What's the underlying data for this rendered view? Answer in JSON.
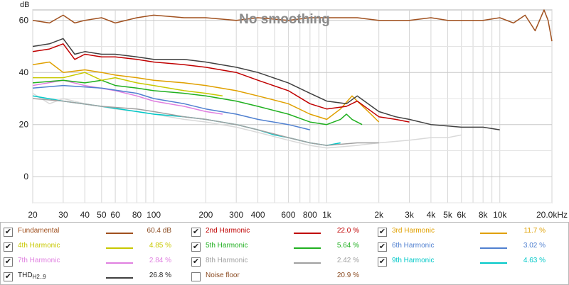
{
  "chart_data": {
    "type": "line",
    "title": "No smoothing",
    "ylabel": "dB",
    "x_scale": "log",
    "xlim": [
      20,
      20000
    ],
    "ylim": [
      -10,
      64
    ],
    "x_ticks": [
      {
        "v": 20,
        "label": "20"
      },
      {
        "v": 30,
        "label": "30"
      },
      {
        "v": 40,
        "label": "40"
      },
      {
        "v": 50,
        "label": "50"
      },
      {
        "v": 60,
        "label": "60"
      },
      {
        "v": 80,
        "label": "80"
      },
      {
        "v": 100,
        "label": "100"
      },
      {
        "v": 200,
        "label": "200"
      },
      {
        "v": 300,
        "label": "300"
      },
      {
        "v": 400,
        "label": "400"
      },
      {
        "v": 600,
        "label": "600"
      },
      {
        "v": 800,
        "label": "800"
      },
      {
        "v": 1000,
        "label": "1k"
      },
      {
        "v": 2000,
        "label": "2k"
      },
      {
        "v": 3000,
        "label": "3k"
      },
      {
        "v": 4000,
        "label": "4k"
      },
      {
        "v": 5000,
        "label": "5k"
      },
      {
        "v": 6000,
        "label": "6k"
      },
      {
        "v": 8000,
        "label": "8k"
      },
      {
        "v": 10000,
        "label": "10k"
      },
      {
        "v": 20000,
        "label": "20.0kHz"
      }
    ],
    "y_ticks": [
      {
        "v": 0,
        "label": "0"
      },
      {
        "v": 20,
        "label": "20"
      },
      {
        "v": 40,
        "label": "40"
      },
      {
        "v": 60,
        "label": "60"
      }
    ],
    "series": [
      {
        "name": "Noise floor",
        "color": "#d9d9d9",
        "visible": true,
        "points": [
          [
            20,
            32
          ],
          [
            25,
            28
          ],
          [
            30,
            30
          ],
          [
            40,
            28
          ],
          [
            60,
            26
          ],
          [
            80,
            25
          ],
          [
            100,
            24
          ],
          [
            150,
            22
          ],
          [
            200,
            21
          ],
          [
            300,
            19
          ],
          [
            400,
            17
          ],
          [
            600,
            14
          ],
          [
            800,
            12
          ],
          [
            1000,
            11
          ],
          [
            1500,
            12
          ],
          [
            2000,
            13
          ],
          [
            3000,
            14
          ],
          [
            4000,
            15
          ],
          [
            5000,
            15
          ],
          [
            6000,
            16
          ]
        ]
      },
      {
        "name": "9th Harmonic",
        "color": "#00c8c8",
        "points": [
          [
            20,
            31
          ],
          [
            30,
            29
          ],
          [
            50,
            27
          ],
          [
            80,
            25
          ],
          [
            100,
            24
          ],
          [
            150,
            23
          ],
          [
            200,
            22
          ],
          [
            300,
            20
          ],
          [
            400,
            18
          ],
          [
            500,
            16
          ],
          [
            600,
            15
          ],
          [
            800,
            13
          ],
          [
            1000,
            12
          ],
          [
            1200,
            13
          ]
        ]
      },
      {
        "name": "8th Harmonic",
        "color": "#a0a0a0",
        "points": [
          [
            20,
            30
          ],
          [
            30,
            29
          ],
          [
            50,
            27
          ],
          [
            80,
            26
          ],
          [
            100,
            25
          ],
          [
            150,
            23
          ],
          [
            200,
            22
          ],
          [
            300,
            20
          ],
          [
            400,
            18
          ],
          [
            600,
            15
          ],
          [
            800,
            13
          ],
          [
            1000,
            12
          ],
          [
            1500,
            13
          ],
          [
            2000,
            13
          ]
        ]
      },
      {
        "name": "7th Harmonic",
        "color": "#e080e0",
        "points": [
          [
            20,
            35
          ],
          [
            30,
            37
          ],
          [
            40,
            35
          ],
          [
            60,
            33
          ],
          [
            80,
            31
          ],
          [
            100,
            29
          ],
          [
            150,
            27
          ],
          [
            200,
            25
          ],
          [
            250,
            24
          ]
        ]
      },
      {
        "name": "6th Harmonic",
        "color": "#5080d0",
        "points": [
          [
            20,
            34
          ],
          [
            30,
            35
          ],
          [
            50,
            34
          ],
          [
            80,
            32
          ],
          [
            100,
            30
          ],
          [
            150,
            28
          ],
          [
            200,
            26
          ],
          [
            300,
            24
          ],
          [
            400,
            22
          ],
          [
            600,
            20
          ],
          [
            800,
            18
          ]
        ]
      },
      {
        "name": "5th Harmonic",
        "color": "#20b020",
        "points": [
          [
            20,
            36
          ],
          [
            30,
            37
          ],
          [
            40,
            36
          ],
          [
            50,
            37
          ],
          [
            60,
            35
          ],
          [
            80,
            34
          ],
          [
            100,
            33
          ],
          [
            150,
            32
          ],
          [
            200,
            31
          ],
          [
            300,
            29
          ],
          [
            400,
            27
          ],
          [
            600,
            24
          ],
          [
            800,
            21
          ],
          [
            1000,
            20
          ],
          [
            1200,
            22
          ],
          [
            1300,
            24
          ],
          [
            1400,
            22
          ],
          [
            1600,
            20
          ]
        ]
      },
      {
        "name": "4th Harmonic",
        "color": "#c8c800",
        "points": [
          [
            20,
            38
          ],
          [
            30,
            38
          ],
          [
            40,
            40
          ],
          [
            50,
            37
          ],
          [
            60,
            38
          ],
          [
            80,
            36
          ],
          [
            100,
            35
          ],
          [
            150,
            33
          ],
          [
            200,
            32
          ],
          [
            250,
            31
          ]
        ]
      },
      {
        "name": "3rd Harmonic",
        "color": "#e0a000",
        "points": [
          [
            20,
            43
          ],
          [
            25,
            44
          ],
          [
            30,
            40
          ],
          [
            40,
            41
          ],
          [
            50,
            40
          ],
          [
            60,
            39
          ],
          [
            80,
            38
          ],
          [
            100,
            37
          ],
          [
            150,
            36
          ],
          [
            200,
            35
          ],
          [
            300,
            33
          ],
          [
            400,
            31
          ],
          [
            600,
            28
          ],
          [
            800,
            24
          ],
          [
            1000,
            22
          ],
          [
            1200,
            26
          ],
          [
            1400,
            31
          ],
          [
            1500,
            29
          ],
          [
            1800,
            24
          ],
          [
            2000,
            21
          ]
        ]
      },
      {
        "name": "2nd Harmonic",
        "color": "#c00000",
        "points": [
          [
            20,
            48
          ],
          [
            25,
            49
          ],
          [
            30,
            51
          ],
          [
            35,
            45
          ],
          [
            40,
            47
          ],
          [
            50,
            46
          ],
          [
            60,
            46
          ],
          [
            80,
            45
          ],
          [
            100,
            44
          ],
          [
            150,
            43
          ],
          [
            200,
            42
          ],
          [
            300,
            40
          ],
          [
            400,
            37
          ],
          [
            600,
            33
          ],
          [
            800,
            28
          ],
          [
            1000,
            26
          ],
          [
            1300,
            27
          ],
          [
            1500,
            29
          ],
          [
            2000,
            23
          ],
          [
            2500,
            22
          ],
          [
            3000,
            21
          ]
        ]
      },
      {
        "name": "THD",
        "color": "#404040",
        "points": [
          [
            20,
            50
          ],
          [
            25,
            51
          ],
          [
            30,
            53
          ],
          [
            35,
            47
          ],
          [
            40,
            48
          ],
          [
            50,
            47
          ],
          [
            60,
            47
          ],
          [
            80,
            46
          ],
          [
            100,
            45
          ],
          [
            150,
            45
          ],
          [
            200,
            44
          ],
          [
            300,
            42
          ],
          [
            400,
            40
          ],
          [
            600,
            36
          ],
          [
            800,
            32
          ],
          [
            1000,
            29
          ],
          [
            1300,
            28
          ],
          [
            1500,
            31
          ],
          [
            2000,
            25
          ],
          [
            2500,
            23
          ],
          [
            3000,
            22
          ],
          [
            4000,
            20
          ],
          [
            6000,
            19
          ],
          [
            8000,
            19
          ],
          [
            10000,
            18
          ]
        ]
      },
      {
        "name": "Fundamental",
        "color": "#a0501e",
        "points": [
          [
            20,
            60
          ],
          [
            25,
            59
          ],
          [
            30,
            62
          ],
          [
            35,
            59
          ],
          [
            40,
            60
          ],
          [
            50,
            61
          ],
          [
            60,
            59
          ],
          [
            80,
            61
          ],
          [
            100,
            62
          ],
          [
            150,
            61
          ],
          [
            200,
            61
          ],
          [
            300,
            60
          ],
          [
            400,
            61
          ],
          [
            600,
            60
          ],
          [
            800,
            61
          ],
          [
            1000,
            61
          ],
          [
            1500,
            61
          ],
          [
            2000,
            60
          ],
          [
            3000,
            60
          ],
          [
            4000,
            61
          ],
          [
            5000,
            60
          ],
          [
            6000,
            60
          ],
          [
            8000,
            60
          ],
          [
            10000,
            61
          ],
          [
            12000,
            59
          ],
          [
            14000,
            62
          ],
          [
            16000,
            56
          ],
          [
            18000,
            64
          ],
          [
            19000,
            60
          ],
          [
            20000,
            52
          ]
        ]
      }
    ]
  },
  "legend": {
    "rows": [
      [
        {
          "label": "Fundamental",
          "value": "60.4 dB",
          "color": "#a0501e",
          "checked": true
        },
        {
          "label": "2nd Harmonic",
          "value": "22.0 %",
          "color": "#c00000",
          "checked": true
        },
        {
          "label": "3rd Harmonic",
          "value": "11.7 %",
          "color": "#e0a000",
          "checked": true
        }
      ],
      [
        {
          "label": "4th Harmonic",
          "value": "4.85 %",
          "color": "#c8c800",
          "checked": true
        },
        {
          "label": "5th Harmonic",
          "value": "5.64 %",
          "color": "#20b020",
          "checked": true
        },
        {
          "label": "6th Harmonic",
          "value": "3.02 %",
          "color": "#5080d0",
          "checked": true
        }
      ],
      [
        {
          "label": "7th Harmonic",
          "value": "2.84 %",
          "color": "#e080e0",
          "checked": true
        },
        {
          "label": "8th Harmonic",
          "value": "2.42 %",
          "color": "#a0a0a0",
          "checked": true
        },
        {
          "label": "9th Harmonic",
          "value": "4.63 %",
          "color": "#00c8c8",
          "checked": true
        }
      ],
      [
        {
          "label": "THD",
          "sub": "H2..9",
          "value": "26.8 %",
          "color": "#404040",
          "checked": true
        },
        {
          "label": "Noise floor",
          "value": "20.9 %",
          "color": "",
          "checked": false
        }
      ]
    ]
  }
}
